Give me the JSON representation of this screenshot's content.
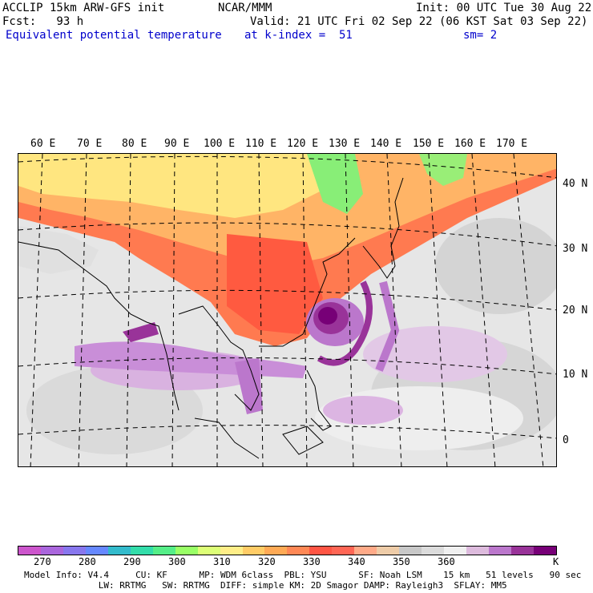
{
  "header": {
    "line1_left": "ACCLIP 15km ARW-GFS init",
    "line1_mid": "NCAR/MMM",
    "line1_right": "Init: 00 UTC Tue 30 Aug 22",
    "line2_left": "Fcst:   93 h",
    "line2_right": "Valid: 21 UTC Fri 02 Sep 22 (06 KST Sat 03 Sep 22)",
    "line3_left": "Equivalent potential temperature",
    "line3_mid": "at k-index =  51",
    "line3_right": "sm= 2"
  },
  "map": {
    "lon_labels": [
      "60 E",
      "70 E",
      "80 E",
      "90 E",
      "100 E",
      "110 E",
      "120 E",
      "130 E",
      "140 E",
      "150 E",
      "160 E",
      "170 E"
    ],
    "lat_labels": [
      "40 N",
      "30 N",
      "20 N",
      "10 N",
      "0"
    ]
  },
  "colorbar": {
    "colors": [
      "#cc55cc",
      "#aa66dd",
      "#8877ee",
      "#6688ff",
      "#33bbcc",
      "#33ddaa",
      "#55ee88",
      "#99ff66",
      "#ddff77",
      "#ffee88",
      "#ffcc66",
      "#ffaa55",
      "#ff8855",
      "#ff5544",
      "#ff6655",
      "#ffaa88",
      "#eecca8",
      "#c8c8c8",
      "#dcdcdc",
      "#f0f0f0",
      "#ddbbdd",
      "#bb77cc",
      "#993399",
      "#770077"
    ],
    "labels": [
      "270",
      "280",
      "290",
      "300",
      "310",
      "320",
      "330",
      "340",
      "350",
      "360",
      "K"
    ],
    "unit": "K"
  },
  "footer": {
    "line1": "Model Info: V4.4     CU: KF      MP: WDM 6class  PBL: YSU      SF: Noah LSM    15 km   51 levels   90 sec",
    "line2": "              LW: RRTMG   SW: RRTMG  DIFF: simple KM: 2D Smagor DAMP: Rayleigh3  SFLAY: MM5"
  }
}
